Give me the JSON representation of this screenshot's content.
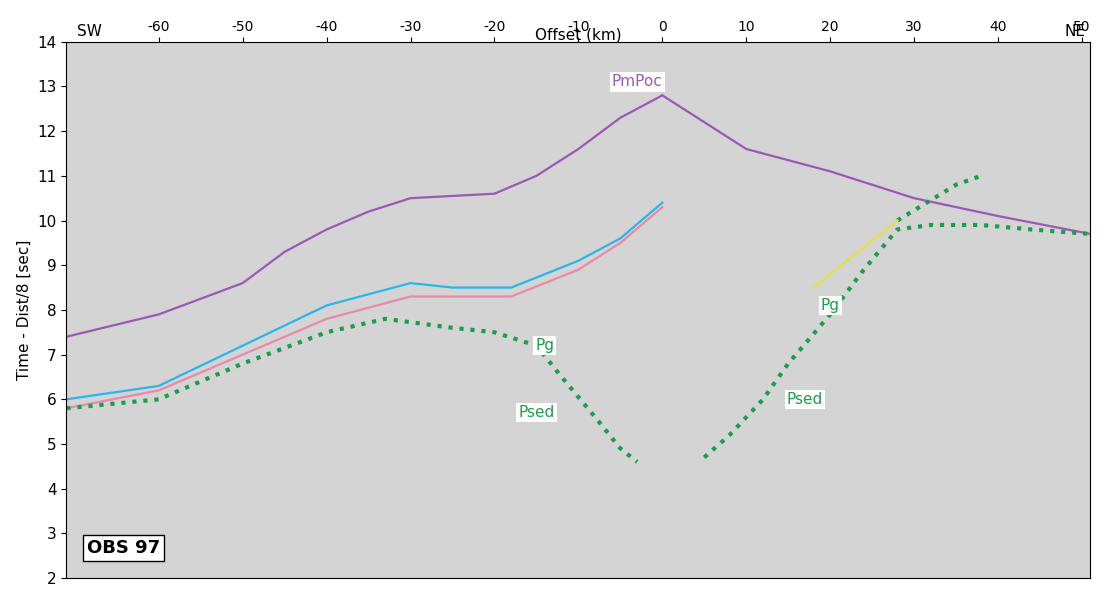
{
  "chart_data": {
    "type": "line",
    "xlabel": "Offset (km)",
    "ylabel": "Time - Dist/8 [sec]",
    "xlim": [
      -71,
      51
    ],
    "ylim": [
      2,
      14
    ],
    "xticks": [
      -60,
      -50,
      -40,
      -30,
      -20,
      -10,
      0,
      10,
      20,
      30,
      40,
      50
    ],
    "yticks": [
      2,
      3,
      4,
      5,
      6,
      7,
      8,
      9,
      10,
      11,
      12,
      13,
      14
    ],
    "grid": false,
    "side_labels": {
      "left": "SW",
      "right": "NE"
    },
    "station": "OBS 97",
    "series": [
      {
        "color": "#9b59b6",
        "line_style": "solid",
        "x": [
          -71,
          -60,
          -50,
          -45,
          -40,
          -35,
          -30,
          -20,
          -15,
          -10,
          -5,
          0
        ],
        "values": [
          7.4,
          7.9,
          8.6,
          9.3,
          9.8,
          10.2,
          10.5,
          10.6,
          11.0,
          11.6,
          12.3,
          12.8
        ]
      },
      {
        "color": "#9b59b6",
        "line_style": "solid",
        "x": [
          0,
          5,
          10,
          20,
          30,
          40,
          51
        ],
        "values": [
          12.8,
          12.2,
          11.6,
          11.1,
          10.5,
          10.1,
          9.7
        ]
      },
      {
        "color": "#29b6e8",
        "line_style": "solid",
        "x": [
          -71,
          -60,
          -50,
          -40,
          -30,
          -25,
          -18,
          -10,
          -5,
          0
        ],
        "values": [
          6.0,
          6.3,
          7.2,
          8.1,
          8.6,
          8.5,
          8.5,
          9.1,
          9.6,
          10.4
        ]
      },
      {
        "color": "#e88aa8",
        "line_style": "solid",
        "x": [
          -71,
          -60,
          -50,
          -40,
          -30,
          -25,
          -18,
          -10,
          -5,
          0
        ],
        "values": [
          5.8,
          6.2,
          7.0,
          7.8,
          8.3,
          8.3,
          8.3,
          8.9,
          9.5,
          10.3
        ]
      },
      {
        "color": "#1a9e4a",
        "line_style": "dotted",
        "x": [
          -71,
          -60,
          -50,
          -40,
          -33,
          -25,
          -20,
          -15,
          -12,
          -8,
          -5,
          -3
        ],
        "values": [
          5.8,
          6.0,
          6.8,
          7.5,
          7.8,
          7.6,
          7.5,
          7.2,
          6.5,
          5.6,
          4.9,
          4.6
        ]
      },
      {
        "color": "#1a9e4a",
        "line_style": "dotted",
        "x": [
          5,
          8,
          12,
          15,
          20,
          24,
          28,
          32,
          38,
          44,
          51
        ],
        "values": [
          4.7,
          5.2,
          6.0,
          6.8,
          7.9,
          8.9,
          9.8,
          9.9,
          9.9,
          9.8,
          9.7
        ]
      },
      {
        "color": "#1a9e4a",
        "line_style": "dotted",
        "x": [
          28,
          35,
          38
        ],
        "values": [
          10.0,
          10.8,
          11.0
        ]
      },
      {
        "color": "#e6e04a",
        "line_style": "solid",
        "x": [
          18,
          28
        ],
        "values": [
          8.5,
          10.0
        ]
      }
    ],
    "annotations": [
      {
        "text": "PmPoc",
        "x": -3,
        "y": 13.1,
        "color": "#9b59b6"
      },
      {
        "text": "Pg",
        "x": -14,
        "y": 7.2,
        "color": "#1a9e4a"
      },
      {
        "text": "Psed",
        "x": -15,
        "y": 5.7,
        "color": "#1a9e4a"
      },
      {
        "text": "Pg",
        "x": 20,
        "y": 8.1,
        "color": "#1a9e4a"
      },
      {
        "text": "Psed",
        "x": 17,
        "y": 6.0,
        "color": "#1a9e4a"
      }
    ]
  }
}
